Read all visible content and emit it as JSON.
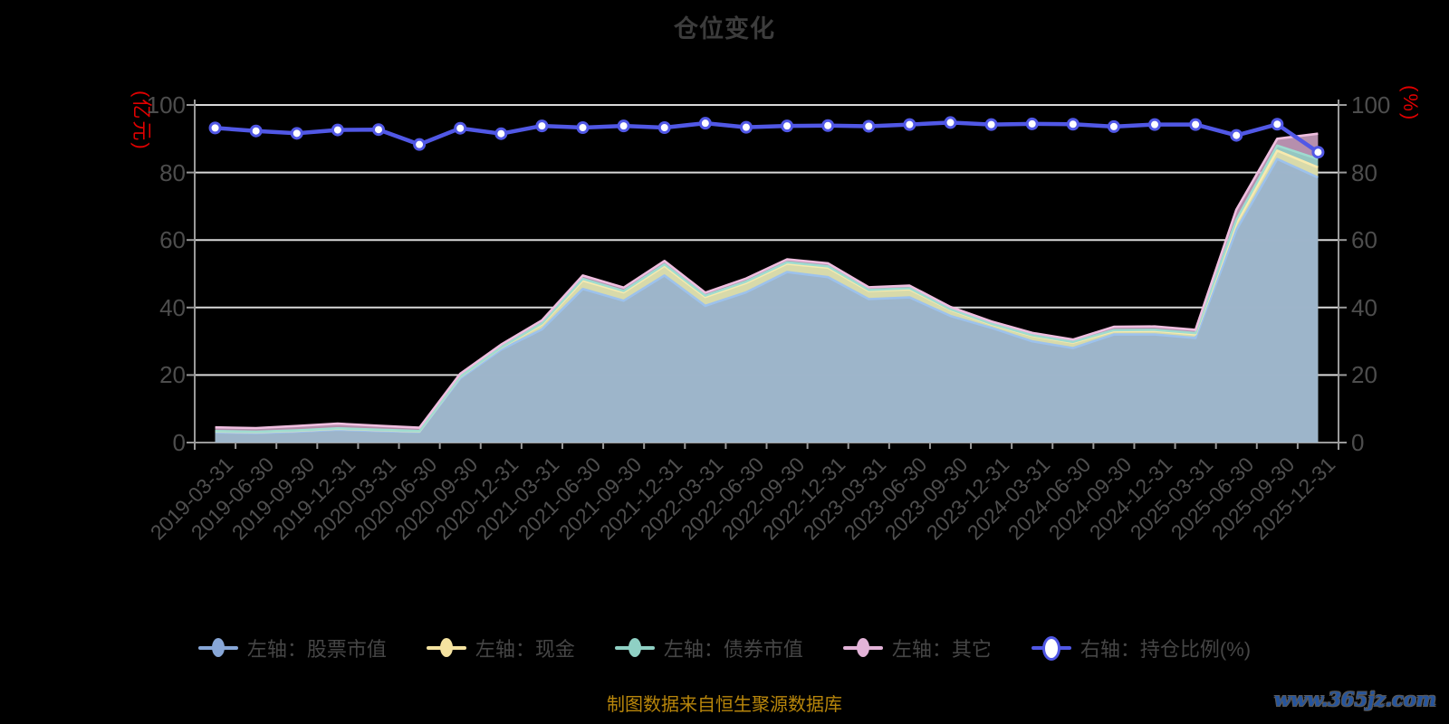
{
  "page": {
    "background": "#000000"
  },
  "chart_data": {
    "type": "area",
    "title": "仓位变化",
    "grid": {
      "show": true,
      "color": "#d9d9d9",
      "axis_color": "#9a9a9a"
    },
    "legend_position": "bottom",
    "x_categories": [
      "2019-03-31",
      "2019-06-30",
      "2019-09-30",
      "2019-12-31",
      "2020-03-31",
      "2020-06-30",
      "2020-09-30",
      "2020-12-31",
      "2021-03-31",
      "2021-06-30",
      "2021-09-30",
      "2021-12-31",
      "2022-03-31",
      "2022-06-30",
      "2022-09-30",
      "2022-12-31",
      "2023-03-31",
      "2023-06-30",
      "2023-09-30",
      "2023-12-31",
      "2024-03-31",
      "2024-06-30",
      "2024-09-30",
      "2024-12-31",
      "2025-03-31",
      "2025-06-30",
      "2025-09-30",
      "2025-12-31"
    ],
    "left_axis": {
      "unit_label": "(亿元)",
      "min": 0,
      "max": 100,
      "ticks": [
        0,
        20,
        40,
        60,
        80,
        100
      ],
      "unit_color": "#e00000",
      "tick_color": "#4d4d4d"
    },
    "right_axis": {
      "unit_label": "(%)",
      "min": 0,
      "max": 100,
      "ticks": [
        0,
        20,
        40,
        60,
        80,
        100
      ],
      "unit_color": "#e00000",
      "tick_color": "#4d4d4d"
    },
    "series": [
      {
        "key": "stock",
        "name": "左轴：股票市值",
        "type": "area",
        "stack": "total",
        "axis": "left",
        "color": "#87a6d7",
        "edge_color": "#9dc2ec",
        "fill_opacity": 0.72,
        "values": [
          3.0,
          2.8,
          3.2,
          3.8,
          3.4,
          3.1,
          19.0,
          27.5,
          33.5,
          45.5,
          42.0,
          49.5,
          40.5,
          44.5,
          50.5,
          49.0,
          42.5,
          43.0,
          37.5,
          34.0,
          30.0,
          28.0,
          32.0,
          32.0,
          31.0,
          63.0,
          84.0,
          78.5
        ]
      },
      {
        "key": "cash",
        "name": "左轴：现金",
        "type": "area",
        "stack": "total",
        "axis": "left",
        "color": "#f5e3a0",
        "edge_color": "#f8eaae",
        "fill_opacity": 0.7,
        "values": [
          0.3,
          0.3,
          0.3,
          0.3,
          0.3,
          0.2,
          0.5,
          0.6,
          1.5,
          2.5,
          2.5,
          2.8,
          2.6,
          2.8,
          2.5,
          2.8,
          2.4,
          2.4,
          1.8,
          1.0,
          1.6,
          1.6,
          1.0,
          1.1,
          1.1,
          2.0,
          2.5,
          3.0
        ]
      },
      {
        "key": "bond",
        "name": "左轴：债券市值",
        "type": "area",
        "stack": "total",
        "axis": "left",
        "color": "#8fd0c4",
        "edge_color": "#9fdcd0",
        "fill_opacity": 0.85,
        "values": [
          0.1,
          0.1,
          0.1,
          0.1,
          0.1,
          0.1,
          0.1,
          0.1,
          0.3,
          0.5,
          0.4,
          0.5,
          0.4,
          0.4,
          0.4,
          0.4,
          0.3,
          0.3,
          0.2,
          0.2,
          0.2,
          0.2,
          0.3,
          0.3,
          0.3,
          1.0,
          1.5,
          2.5
        ]
      },
      {
        "key": "other",
        "name": "左轴：其它",
        "type": "area",
        "stack": "total",
        "axis": "left",
        "color": "#e3b3d8",
        "edge_color": "#f0bfe0",
        "fill_opacity": 0.8,
        "values": [
          1.1,
          1.1,
          1.3,
          1.4,
          1.2,
          1.0,
          0.8,
          0.8,
          0.9,
          1.0,
          1.0,
          1.0,
          0.9,
          0.9,
          0.9,
          0.9,
          0.8,
          0.8,
          0.7,
          0.7,
          0.7,
          0.7,
          1.0,
          1.0,
          1.0,
          3.0,
          2.0,
          7.5
        ]
      },
      {
        "key": "position-ratio",
        "name": "右轴：持仓比例(%)",
        "type": "line",
        "axis": "right",
        "color": "#5158e6",
        "marker": "white-circle",
        "values": [
          93.2,
          92.3,
          91.6,
          92.6,
          92.7,
          88.3,
          93.1,
          91.5,
          93.8,
          93.3,
          93.8,
          93.3,
          94.6,
          93.4,
          93.8,
          93.9,
          93.7,
          94.2,
          94.8,
          94.2,
          94.4,
          94.3,
          93.6,
          94.2,
          94.2,
          91.0,
          94.3,
          86.0
        ]
      }
    ]
  },
  "footer": {
    "source": "制图数据来自恒生聚源数据库",
    "color": "#b8860b"
  },
  "watermark": {
    "text": "www.365jz.com",
    "color": "#24549e"
  }
}
